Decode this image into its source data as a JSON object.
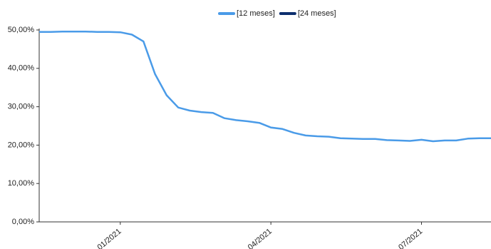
{
  "chart_data": {
    "type": "line",
    "categories": [
      null,
      null,
      null,
      null,
      null,
      null,
      null,
      "01/2021",
      null,
      null,
      null,
      null,
      null,
      null,
      null,
      null,
      null,
      null,
      null,
      null,
      "04/2021",
      null,
      null,
      null,
      null,
      null,
      null,
      null,
      null,
      null,
      null,
      null,
      null,
      "07/2021",
      null,
      null,
      null,
      null,
      null,
      null
    ],
    "series": [
      {
        "name": "[12 meses]",
        "color": "#4a9be8",
        "values": [
          49.5,
          49.5,
          49.6,
          49.6,
          49.6,
          49.5,
          49.5,
          49.4,
          48.8,
          47.0,
          38.5,
          33.0,
          29.8,
          29.0,
          28.6,
          28.4,
          27.0,
          26.5,
          26.2,
          25.8,
          24.6,
          24.2,
          23.2,
          22.5,
          22.3,
          22.2,
          21.8,
          21.7,
          21.6,
          21.6,
          21.3,
          21.2,
          21.1,
          21.4,
          21.0,
          21.2,
          21.2,
          21.7,
          21.8,
          21.8
        ]
      },
      {
        "name": "[24 meses]",
        "color": "#0d2f6e",
        "values": [
          null,
          null,
          null,
          null,
          null,
          null,
          null,
          null,
          null,
          null,
          null,
          null,
          null,
          null,
          null,
          null,
          null,
          null,
          null,
          null,
          null,
          null,
          null,
          null,
          null,
          null,
          null,
          null,
          null,
          null,
          null,
          null,
          null,
          null,
          null,
          null,
          null,
          null,
          null,
          null
        ]
      }
    ],
    "ylim": [
      0,
      50
    ],
    "yticks": [
      {
        "value": 0,
        "label": "0,00%"
      },
      {
        "value": 10,
        "label": "10,00%"
      },
      {
        "value": 20,
        "label": "20,00%"
      },
      {
        "value": 30,
        "label": "30,00%"
      },
      {
        "value": 40,
        "label": "40,00%"
      },
      {
        "value": 50,
        "label": "50,00%"
      }
    ],
    "grid": false,
    "legend": "top"
  }
}
